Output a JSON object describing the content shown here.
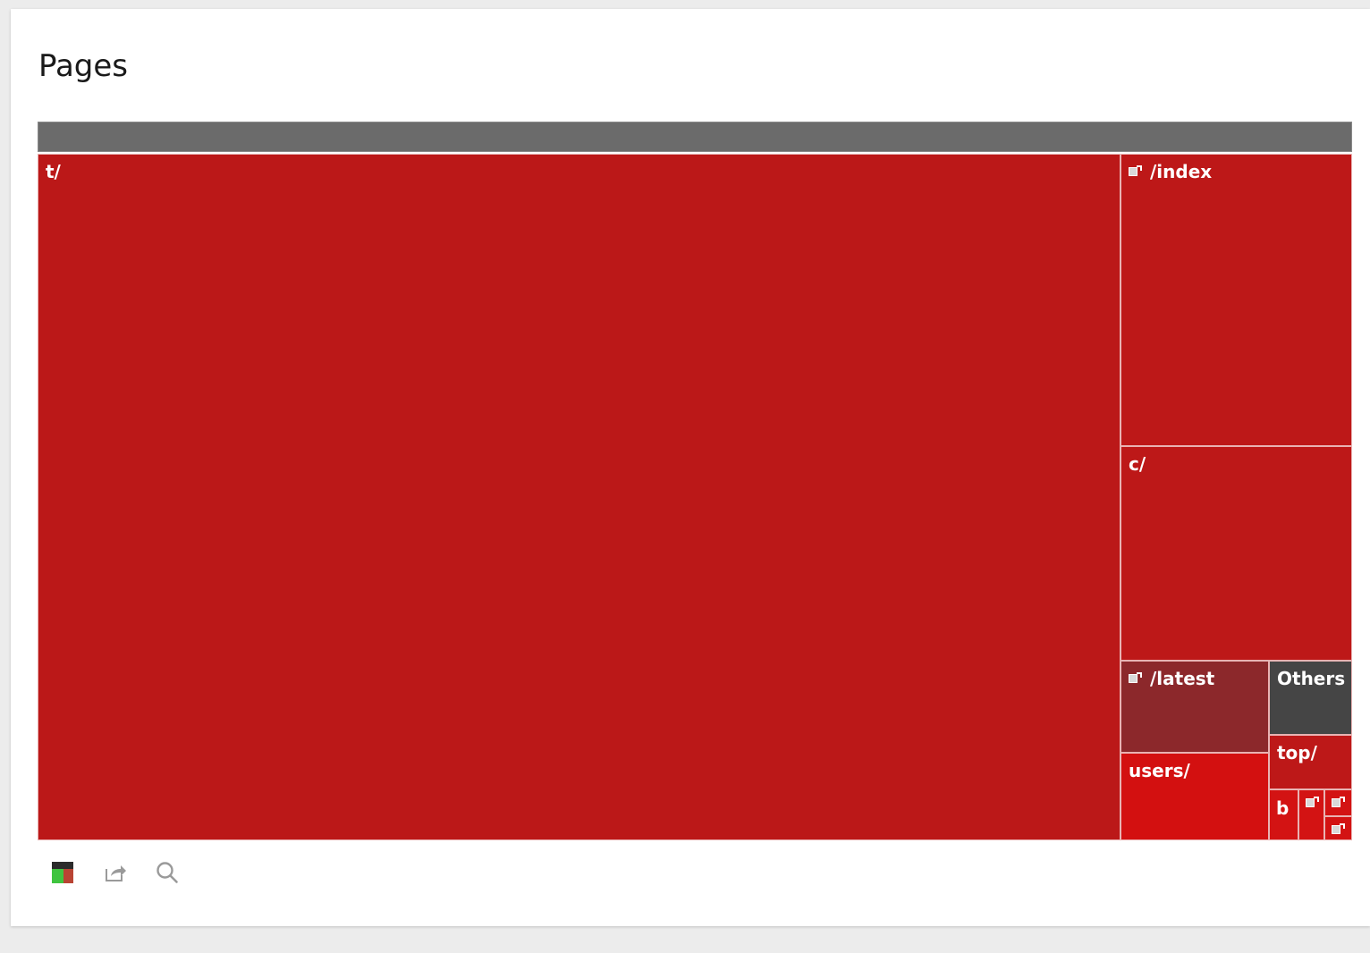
{
  "panel": {
    "title": "Pages"
  },
  "chart_data": {
    "type": "treemap",
    "title": "Pages",
    "tiles": [
      {
        "label": "t/",
        "color": "#bb1818",
        "link": false
      },
      {
        "label": "/index",
        "color": "#bd1818",
        "link": true
      },
      {
        "label": "c/",
        "color": "#bd1818",
        "link": false
      },
      {
        "label": "/latest",
        "color": "#8c282b",
        "link": true
      },
      {
        "label": "users/",
        "color": "#d31010",
        "link": false
      },
      {
        "label": "Others",
        "color": "#454545",
        "link": false
      },
      {
        "label": "top/",
        "color": "#bd1818",
        "link": false
      },
      {
        "label": "b",
        "color": "#d31313",
        "link": false
      },
      {
        "label": "",
        "color": "#d31313",
        "link": true
      },
      {
        "label": "",
        "color": "#d31313",
        "link": true
      },
      {
        "label": "",
        "color": "#d31313",
        "link": true
      }
    ]
  },
  "toolbar": [
    {
      "icon": "color-legend-icon"
    },
    {
      "icon": "share-icon"
    },
    {
      "icon": "search-icon"
    }
  ]
}
